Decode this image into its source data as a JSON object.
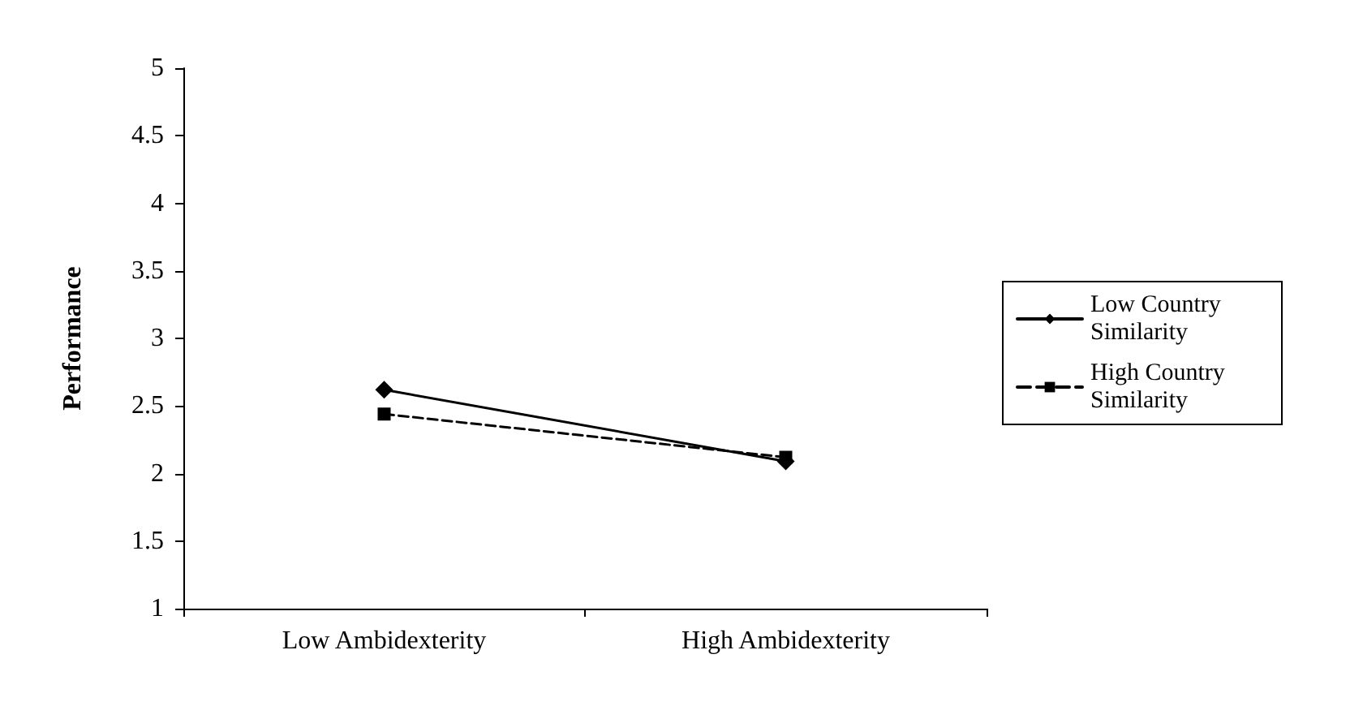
{
  "chart_data": {
    "type": "line",
    "ylabel": "Performance",
    "categories": [
      "Low Ambidexterity",
      "High Ambidexterity"
    ],
    "series": [
      {
        "name": "Low Country Similarity",
        "color": "#000000",
        "marker": "diamond",
        "line_style": "solid",
        "values": [
          2.62,
          2.09
        ]
      },
      {
        "name": "High Country Similarity",
        "color": "#000000",
        "marker": "square",
        "line_style": "dashed",
        "values": [
          2.44,
          2.12
        ]
      }
    ],
    "ylim": [
      1,
      5
    ],
    "yticks": [
      1,
      1.5,
      2,
      2.5,
      3,
      3.5,
      4,
      4.5,
      5
    ],
    "grid": false,
    "legend": "right"
  }
}
